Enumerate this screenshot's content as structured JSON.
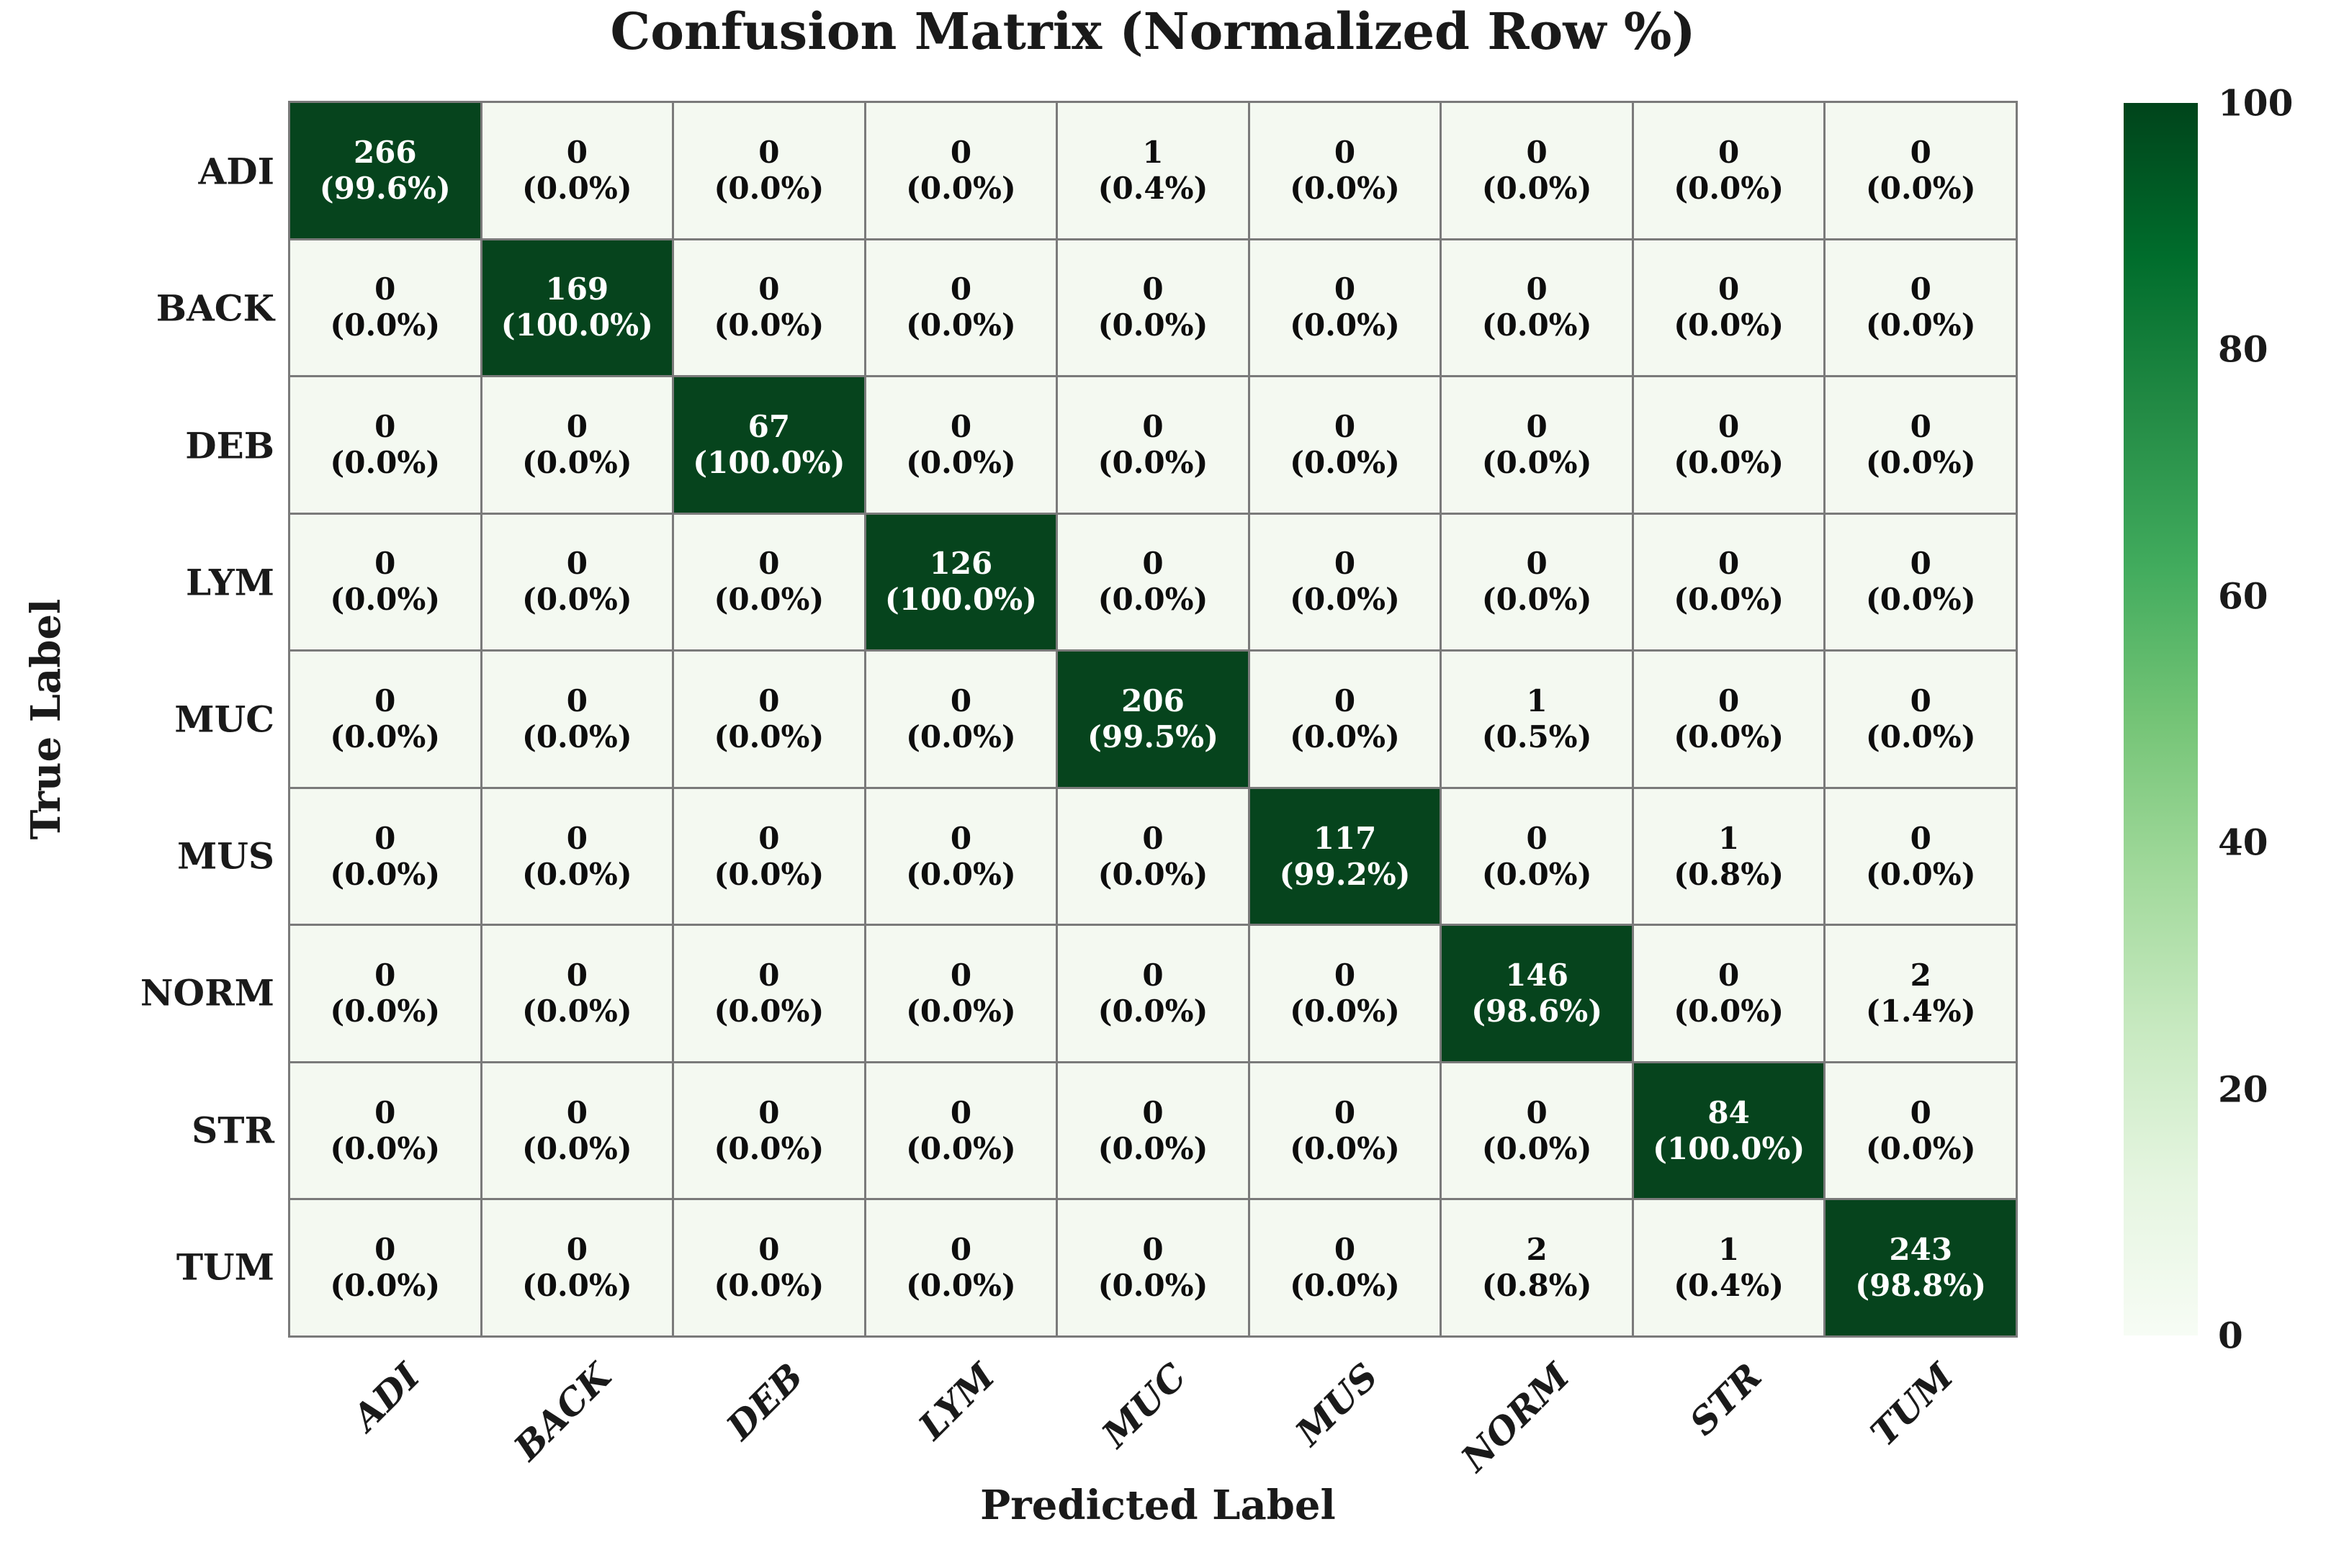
{
  "chart_data": {
    "type": "heatmap",
    "title": "Confusion Matrix (Normalized Row %)",
    "xlabel": "Predicted Label",
    "ylabel": "True Label",
    "categories": [
      "ADI",
      "BACK",
      "DEB",
      "LYM",
      "MUC",
      "MUS",
      "NORM",
      "STR",
      "TUM"
    ],
    "cell_format": "count on first line, (percent%) on second line",
    "rows": [
      {
        "label": "ADI",
        "counts": [
          266,
          0,
          0,
          0,
          1,
          0,
          0,
          0,
          0
        ],
        "percents": [
          99.6,
          0.0,
          0.0,
          0.0,
          0.4,
          0.0,
          0.0,
          0.0,
          0.0
        ]
      },
      {
        "label": "BACK",
        "counts": [
          0,
          169,
          0,
          0,
          0,
          0,
          0,
          0,
          0
        ],
        "percents": [
          0.0,
          100.0,
          0.0,
          0.0,
          0.0,
          0.0,
          0.0,
          0.0,
          0.0
        ]
      },
      {
        "label": "DEB",
        "counts": [
          0,
          0,
          67,
          0,
          0,
          0,
          0,
          0,
          0
        ],
        "percents": [
          0.0,
          0.0,
          100.0,
          0.0,
          0.0,
          0.0,
          0.0,
          0.0,
          0.0
        ]
      },
      {
        "label": "LYM",
        "counts": [
          0,
          0,
          0,
          126,
          0,
          0,
          0,
          0,
          0
        ],
        "percents": [
          0.0,
          0.0,
          0.0,
          100.0,
          0.0,
          0.0,
          0.0,
          0.0,
          0.0
        ]
      },
      {
        "label": "MUC",
        "counts": [
          0,
          0,
          0,
          0,
          206,
          0,
          1,
          0,
          0
        ],
        "percents": [
          0.0,
          0.0,
          0.0,
          0.0,
          99.5,
          0.0,
          0.5,
          0.0,
          0.0
        ]
      },
      {
        "label": "MUS",
        "counts": [
          0,
          0,
          0,
          0,
          0,
          117,
          0,
          1,
          0
        ],
        "percents": [
          0.0,
          0.0,
          0.0,
          0.0,
          0.0,
          99.2,
          0.0,
          0.8,
          0.0
        ]
      },
      {
        "label": "NORM",
        "counts": [
          0,
          0,
          0,
          0,
          0,
          0,
          146,
          0,
          2
        ],
        "percents": [
          0.0,
          0.0,
          0.0,
          0.0,
          0.0,
          0.0,
          98.6,
          0.0,
          1.4
        ]
      },
      {
        "label": "STR",
        "counts": [
          0,
          0,
          0,
          0,
          0,
          0,
          0,
          84,
          0
        ],
        "percents": [
          0.0,
          0.0,
          0.0,
          0.0,
          0.0,
          0.0,
          0.0,
          100.0,
          0.0
        ]
      },
      {
        "label": "TUM",
        "counts": [
          0,
          0,
          0,
          0,
          0,
          0,
          2,
          1,
          243
        ],
        "percents": [
          0.0,
          0.0,
          0.0,
          0.0,
          0.0,
          0.0,
          0.8,
          0.4,
          98.8
        ]
      }
    ],
    "colorbar": {
      "ticks": [
        100,
        80,
        60,
        40,
        20,
        0
      ],
      "range": [
        0,
        100
      ],
      "gradient_stops_top_to_bottom": [
        "#00441b",
        "#006d2c",
        "#238b45",
        "#41ab5d",
        "#74c476",
        "#a1d99b",
        "#c7e9c0",
        "#e5f5e0",
        "#f7fcf5"
      ]
    },
    "colors": {
      "high_cell": "#06441d",
      "low_cell": "#f4f9f1",
      "high_text": "#ffffff",
      "low_text": "#0d0d0d",
      "gridline": "#7a7a7a",
      "text": "#1a1a1a"
    },
    "legend_position": "none",
    "grid": true
  }
}
